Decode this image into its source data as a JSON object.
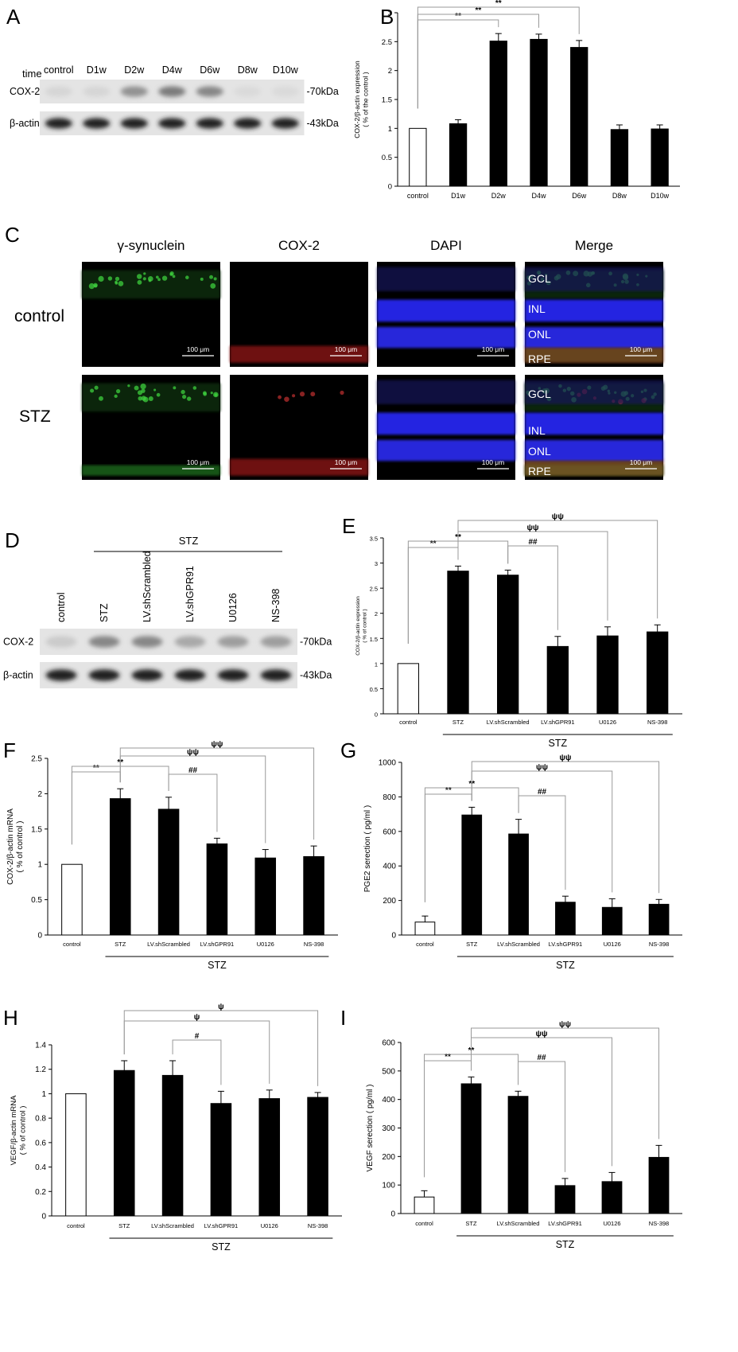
{
  "panel_a": {
    "letter": "A",
    "time_label": "time",
    "lanes": [
      "control",
      "D1w",
      "D2w",
      "D4w",
      "D6w",
      "D8w",
      "D10w"
    ],
    "bands": [
      {
        "name": "COX-2",
        "size": "-70kDa",
        "intensity": [
          0.05,
          0.05,
          0.35,
          0.45,
          0.4,
          0.03,
          0.03
        ]
      },
      {
        "name": "β-actin",
        "size": "-43kDa",
        "intensity": [
          0.85,
          0.85,
          0.85,
          0.85,
          0.85,
          0.85,
          0.85
        ]
      }
    ]
  },
  "panel_c": {
    "letter": "C",
    "columns": [
      "γ-synuclein",
      "COX-2",
      "DAPI",
      "Merge"
    ],
    "rows": [
      "control",
      "STZ"
    ],
    "scale_bar": "100 μm",
    "layers": [
      "GCL",
      "INL",
      "ONL",
      "RPE"
    ]
  },
  "panel_d": {
    "letter": "D",
    "group": "STZ",
    "lanes": [
      "control",
      "STZ",
      "LV.shScrambled",
      "LV.shGPR91",
      "U0126",
      "NS-398"
    ],
    "bands": [
      {
        "name": "COX-2",
        "size": "-70kDa",
        "intensity": [
          0.1,
          0.4,
          0.4,
          0.25,
          0.3,
          0.3
        ]
      },
      {
        "name": "β-actin",
        "size": "-43kDa",
        "intensity": [
          0.85,
          0.85,
          0.85,
          0.85,
          0.85,
          0.85
        ]
      }
    ]
  },
  "chart_data": [
    {
      "panel": "B",
      "type": "bar",
      "title": "",
      "xlabel": "",
      "ylabel": "COX-2/β-actin expression\n( % of the control )",
      "ylim": [
        0,
        3
      ],
      "yticks": [
        0,
        0.5,
        1,
        1.5,
        2,
        2.5,
        3
      ],
      "categories": [
        "control",
        "D1w",
        "D2w",
        "D4w",
        "D6w",
        "D8w",
        "D10w"
      ],
      "values": [
        1.0,
        1.08,
        2.51,
        2.54,
        2.4,
        0.98,
        0.99
      ],
      "errors": [
        0,
        0.07,
        0.13,
        0.09,
        0.12,
        0.08,
        0.07
      ],
      "white_first": true,
      "group_label": "",
      "brackets": [
        {
          "from": 0,
          "to": 2,
          "label": "**"
        },
        {
          "from": 0,
          "to": 3,
          "label": "**"
        },
        {
          "from": 0,
          "to": 4,
          "label": "**"
        }
      ]
    },
    {
      "panel": "E",
      "type": "bar",
      "title": "",
      "xlabel": "",
      "ylabel": "COX-2/β-actin expression\n( % of control )",
      "ylim": [
        0,
        3.5
      ],
      "yticks": [
        0,
        0.5,
        1,
        1.5,
        2,
        2.5,
        3,
        3.5
      ],
      "categories": [
        "control",
        "STZ",
        "LV.shScrambled",
        "LV.shGPR91",
        "U0126",
        "NS-398"
      ],
      "values": [
        1.0,
        2.84,
        2.76,
        1.34,
        1.55,
        1.63
      ],
      "errors": [
        0,
        0.1,
        0.1,
        0.2,
        0.18,
        0.14
      ],
      "white_first": true,
      "group_label": "STZ",
      "brackets": [
        {
          "from": 0,
          "to": 1,
          "label": "**"
        },
        {
          "from": 0,
          "to": 2,
          "label": "**"
        },
        {
          "from": 2,
          "to": 3,
          "label": "##"
        },
        {
          "from": 1,
          "to": 4,
          "label": "ψψ"
        },
        {
          "from": 1,
          "to": 5,
          "label": "ψψ"
        }
      ]
    },
    {
      "panel": "F",
      "type": "bar",
      "title": "",
      "xlabel": "",
      "ylabel": "COX-2/β-actin mRNA\n( % of control )",
      "ylim": [
        0,
        2.5
      ],
      "yticks": [
        0,
        0.5,
        1,
        1.5,
        2,
        2.5
      ],
      "categories": [
        "control",
        "STZ",
        "LV.shScrambled",
        "LV.shGPR91",
        "U0126",
        "NS-398"
      ],
      "values": [
        1.0,
        1.93,
        1.78,
        1.29,
        1.09,
        1.11
      ],
      "errors": [
        0,
        0.14,
        0.17,
        0.08,
        0.12,
        0.15
      ],
      "white_first": true,
      "group_label": "STZ",
      "brackets": [
        {
          "from": 0,
          "to": 1,
          "label": "**"
        },
        {
          "from": 0,
          "to": 2,
          "label": "**"
        },
        {
          "from": 2,
          "to": 3,
          "label": "##"
        },
        {
          "from": 1,
          "to": 4,
          "label": "ψψ"
        },
        {
          "from": 1,
          "to": 5,
          "label": "ψψ"
        }
      ]
    },
    {
      "panel": "G",
      "type": "bar",
      "title": "",
      "xlabel": "",
      "ylabel": "PGE2 serection ( pg/ml )",
      "ylim": [
        0,
        1000
      ],
      "yticks": [
        0,
        200,
        400,
        600,
        800,
        1000
      ],
      "categories": [
        "control",
        "STZ",
        "LV.shScrambled",
        "LV.shGPR91",
        "U0126",
        "NS-398"
      ],
      "values": [
        75,
        695,
        585,
        190,
        160,
        178
      ],
      "errors": [
        35,
        45,
        85,
        35,
        50,
        28
      ],
      "white_first": true,
      "group_label": "STZ",
      "brackets": [
        {
          "from": 0,
          "to": 1,
          "label": "**"
        },
        {
          "from": 0,
          "to": 2,
          "label": "**"
        },
        {
          "from": 2,
          "to": 3,
          "label": "##"
        },
        {
          "from": 1,
          "to": 4,
          "label": "ψψ"
        },
        {
          "from": 1,
          "to": 5,
          "label": "ψψ"
        }
      ]
    },
    {
      "panel": "H",
      "type": "bar",
      "title": "",
      "xlabel": "",
      "ylabel": "VEGF/β-actin mRNA\n( % of control )",
      "ylim": [
        0,
        1.4
      ],
      "yticks": [
        0,
        0.2,
        0.4,
        0.6,
        0.8,
        1,
        1.2,
        1.4
      ],
      "categories": [
        "control",
        "STZ",
        "LV.shScrambled",
        "LV.shGPR91",
        "U0126",
        "NS-398"
      ],
      "values": [
        1.0,
        1.19,
        1.15,
        0.92,
        0.96,
        0.97
      ],
      "errors": [
        0,
        0.08,
        0.12,
        0.1,
        0.07,
        0.04
      ],
      "white_first": true,
      "group_label": "STZ",
      "brackets": [
        {
          "from": 2,
          "to": 3,
          "label": "#"
        },
        {
          "from": 1,
          "to": 4,
          "label": "ψ"
        },
        {
          "from": 1,
          "to": 5,
          "label": "ψ"
        }
      ]
    },
    {
      "panel": "I",
      "type": "bar",
      "title": "",
      "xlabel": "",
      "ylabel": "VEGF serection ( pg/ml )",
      "ylim": [
        0,
        600
      ],
      "yticks": [
        0,
        100,
        200,
        300,
        400,
        500,
        600
      ],
      "categories": [
        "control",
        "STZ",
        "LV.shScrambled",
        "LV.shGPR91",
        "U0126",
        "NS-398"
      ],
      "values": [
        58,
        455,
        411,
        98,
        112,
        197
      ],
      "errors": [
        22,
        24,
        18,
        25,
        32,
        42
      ],
      "white_first": true,
      "group_label": "STZ",
      "brackets": [
        {
          "from": 0,
          "to": 1,
          "label": "**"
        },
        {
          "from": 0,
          "to": 2,
          "label": "**"
        },
        {
          "from": 2,
          "to": 3,
          "label": "##"
        },
        {
          "from": 1,
          "to": 4,
          "label": "ψψ"
        },
        {
          "from": 1,
          "to": 5,
          "label": "ψψ"
        }
      ]
    }
  ]
}
